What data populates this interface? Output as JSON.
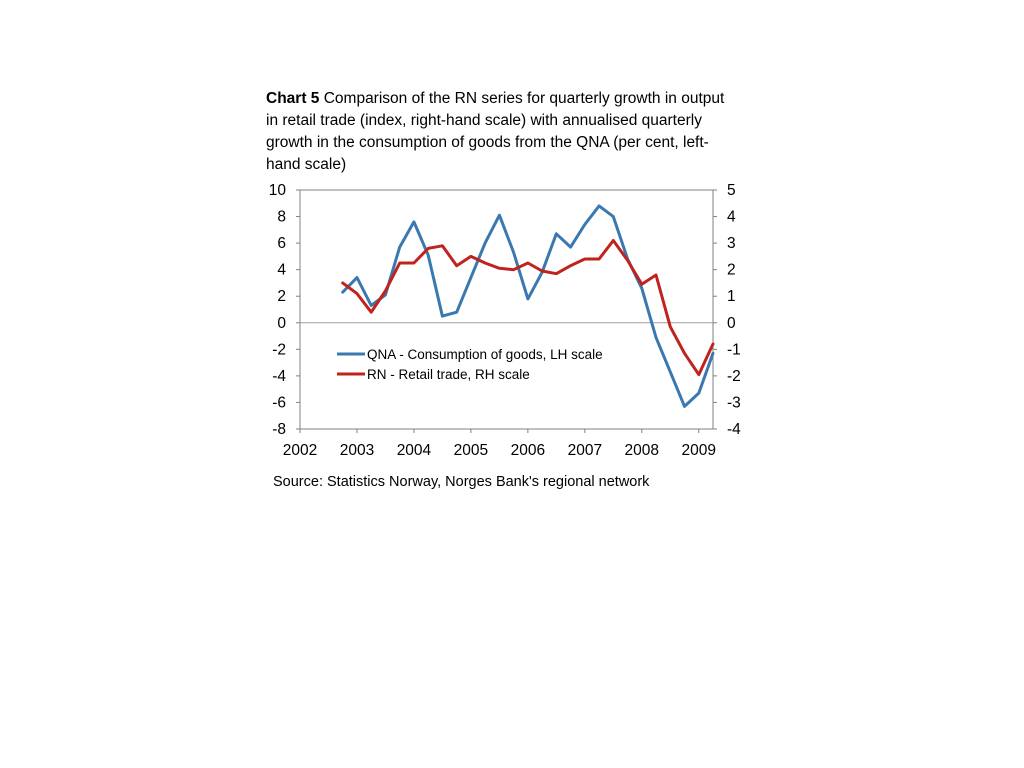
{
  "title": {
    "label": "Chart 5",
    "text": "Comparison of the RN series for quarterly growth in output in retail trade (index, right-hand scale) with annualised quarterly growth in the consumption of goods from the QNA (per cent, left-hand scale)"
  },
  "source": "Source: Statistics Norway, Norges Bank's regional network",
  "chart_data": {
    "type": "line",
    "x_ticks": [
      "2002",
      "2003",
      "2004",
      "2005",
      "2006",
      "2007",
      "2008",
      "2009"
    ],
    "x_range": [
      2002,
      2009.25
    ],
    "y_left": {
      "min": -8,
      "max": 10,
      "ticks": [
        "10",
        "8",
        "6",
        "4",
        "2",
        "0",
        "-2",
        "-4",
        "-6",
        "-8"
      ]
    },
    "y_right": {
      "min": -4,
      "max": 5,
      "ticks": [
        "5",
        "4",
        "3",
        "2",
        "1",
        "0",
        "-1",
        "-2",
        "-3",
        "-4"
      ]
    },
    "grid": false,
    "zero_line": true,
    "legend_position": "center-left",
    "series": [
      {
        "name": "QNA - Consumption of goods, LH scale",
        "axis": "left",
        "color": "#3a78b0",
        "x": [
          2002.75,
          2003.0,
          2003.25,
          2003.5,
          2003.75,
          2004.0,
          2004.25,
          2004.5,
          2004.75,
          2005.0,
          2005.25,
          2005.5,
          2005.75,
          2006.0,
          2006.25,
          2006.5,
          2006.75,
          2007.0,
          2007.25,
          2007.5,
          2007.75,
          2008.0,
          2008.25,
          2008.5,
          2008.75,
          2009.0,
          2009.25
        ],
        "y": [
          2.3,
          3.4,
          1.3,
          2.1,
          5.7,
          7.6,
          5.1,
          0.5,
          0.8,
          3.4,
          6.0,
          8.1,
          5.3,
          1.8,
          3.8,
          6.7,
          5.7,
          7.4,
          8.8,
          8.0,
          4.8,
          2.6,
          -1.1,
          -3.7,
          -6.3,
          -5.3,
          -2.3
        ]
      },
      {
        "name": "RN - Retail trade, RH scale",
        "axis": "right",
        "color": "#c0231e",
        "x": [
          2002.75,
          2003.0,
          2003.25,
          2003.5,
          2003.75,
          2004.0,
          2004.25,
          2004.5,
          2004.75,
          2005.0,
          2005.25,
          2005.5,
          2005.75,
          2006.0,
          2006.25,
          2006.5,
          2006.75,
          2007.0,
          2007.25,
          2007.5,
          2007.75,
          2008.0,
          2008.25,
          2008.5,
          2008.75,
          2009.0,
          2009.25
        ],
        "y": [
          1.5,
          1.1,
          0.4,
          1.2,
          2.25,
          2.25,
          2.8,
          2.9,
          2.15,
          2.5,
          2.25,
          2.05,
          2.0,
          2.25,
          1.95,
          1.85,
          2.15,
          2.4,
          2.4,
          3.1,
          2.35,
          1.45,
          1.8,
          -0.15,
          -1.15,
          -1.95,
          -0.8
        ]
      }
    ]
  }
}
